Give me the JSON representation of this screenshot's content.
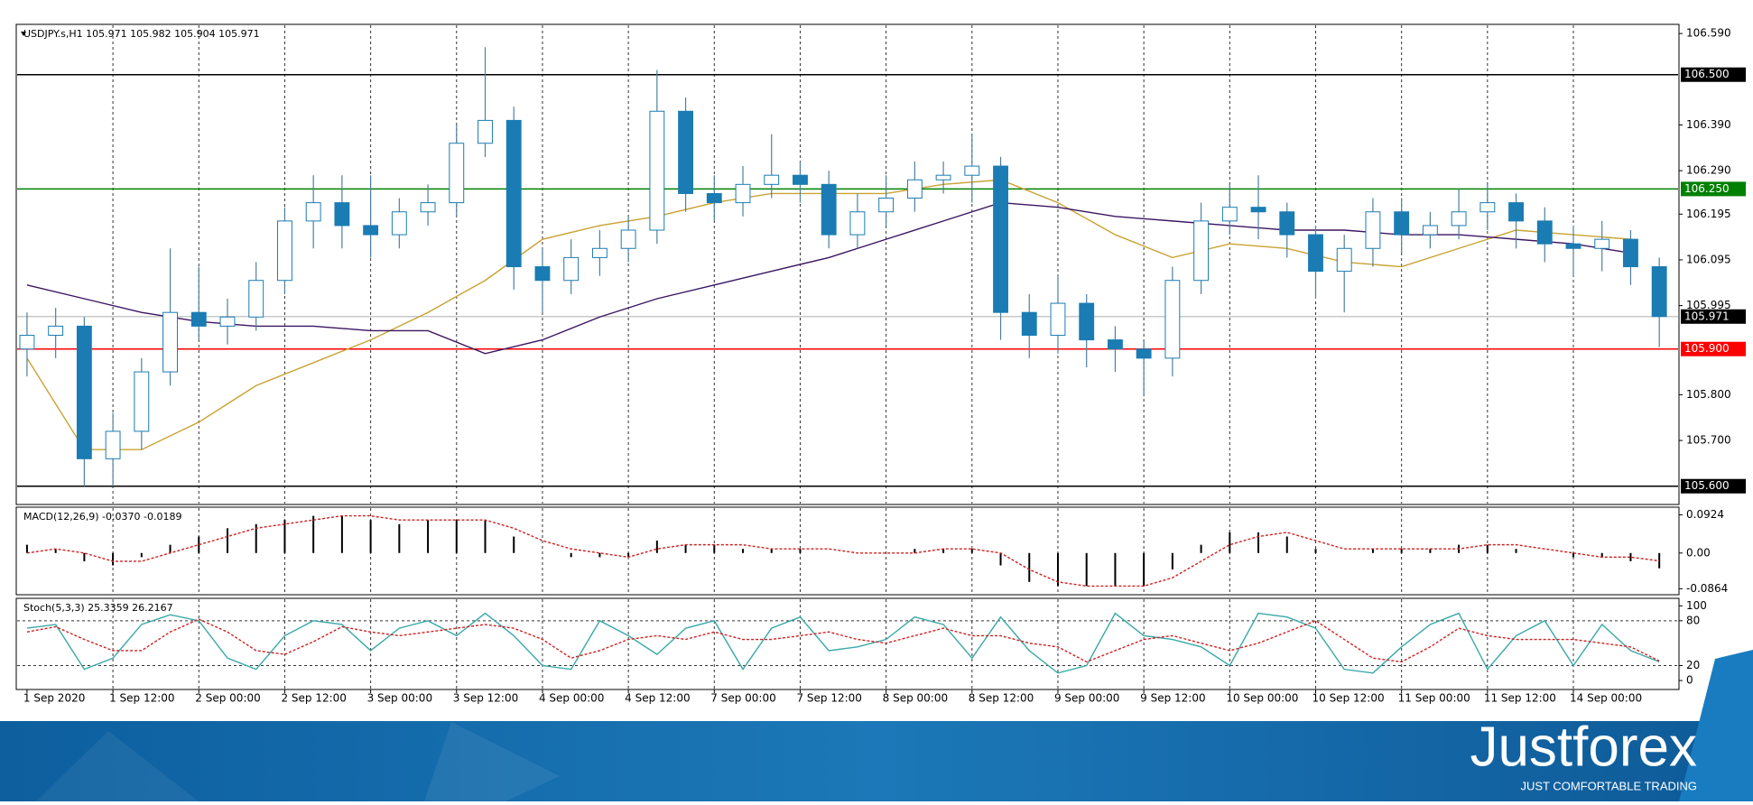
{
  "chart_data": [
    {
      "type": "candlestick",
      "title": "USDJPY.s,H1  105.971 105.982 105.904 105.971",
      "x": [
        0,
        4,
        8,
        12,
        16,
        20,
        24,
        28,
        32,
        36,
        40,
        44,
        48,
        52,
        56,
        60,
        64,
        68,
        72,
        76,
        80,
        84,
        88,
        92,
        96,
        100,
        104,
        108,
        112,
        116,
        120,
        124,
        128,
        132,
        136,
        140,
        144,
        148,
        152,
        156,
        160,
        164,
        168,
        172,
        176,
        180,
        184,
        188,
        192,
        196,
        200,
        204,
        208,
        212,
        216,
        220,
        224,
        228
      ],
      "open": [
        105.9,
        105.93,
        105.95,
        105.66,
        105.72,
        105.85,
        105.98,
        105.95,
        105.97,
        106.05,
        106.18,
        106.22,
        106.17,
        106.15,
        106.2,
        106.22,
        106.35,
        106.4,
        106.08,
        106.05,
        106.1,
        106.12,
        106.16,
        106.42,
        106.24,
        106.22,
        106.26,
        106.28,
        106.26,
        106.15,
        106.2,
        106.23,
        106.27,
        106.28,
        106.3,
        105.98,
        105.93,
        106.0,
        105.92,
        105.9,
        105.88,
        106.05,
        106.18,
        106.21,
        106.2,
        106.15,
        106.07,
        106.12,
        106.2,
        106.15,
        106.17,
        106.2,
        106.22,
        106.18,
        106.13,
        106.12,
        106.14,
        106.08
      ],
      "high": [
        105.98,
        105.99,
        105.97,
        105.76,
        105.88,
        106.12,
        106.08,
        106.01,
        106.09,
        106.21,
        106.28,
        106.28,
        106.28,
        106.23,
        106.26,
        106.39,
        106.56,
        106.43,
        106.12,
        106.14,
        106.16,
        106.19,
        106.51,
        106.45,
        106.28,
        106.3,
        106.37,
        106.31,
        106.29,
        106.24,
        106.28,
        106.31,
        106.31,
        106.37,
        106.32,
        106.02,
        106.06,
        106.02,
        105.95,
        105.92,
        106.08,
        106.22,
        106.26,
        106.28,
        106.22,
        106.17,
        106.15,
        106.23,
        106.23,
        106.2,
        106.25,
        106.26,
        106.24,
        106.21,
        106.17,
        106.18,
        106.16,
        106.1
      ],
      "low": [
        105.84,
        105.88,
        105.6,
        105.6,
        105.68,
        105.82,
        105.92,
        105.91,
        105.94,
        106.02,
        106.12,
        106.12,
        106.1,
        106.12,
        106.17,
        106.19,
        106.32,
        106.03,
        105.98,
        106.02,
        106.06,
        106.09,
        106.13,
        106.2,
        106.18,
        106.19,
        106.23,
        106.22,
        106.12,
        106.12,
        106.17,
        106.2,
        106.24,
        106.22,
        105.92,
        105.88,
        105.89,
        105.86,
        105.85,
        105.8,
        105.84,
        106.02,
        106.15,
        106.14,
        106.1,
        106.01,
        105.98,
        106.08,
        106.11,
        106.12,
        106.14,
        106.16,
        106.12,
        106.09,
        106.06,
        106.07,
        106.04,
        105.904
      ],
      "close": [
        105.93,
        105.95,
        105.66,
        105.72,
        105.85,
        105.98,
        105.95,
        105.97,
        106.05,
        106.18,
        106.22,
        106.17,
        106.15,
        106.2,
        106.22,
        106.35,
        106.4,
        106.08,
        106.05,
        106.1,
        106.12,
        106.16,
        106.42,
        106.24,
        106.22,
        106.26,
        106.28,
        106.26,
        106.15,
        106.2,
        106.23,
        106.27,
        106.28,
        106.3,
        105.98,
        105.93,
        106.0,
        105.92,
        105.9,
        105.88,
        106.05,
        106.18,
        106.21,
        106.2,
        106.15,
        106.07,
        106.12,
        106.2,
        106.15,
        106.17,
        106.2,
        106.22,
        106.18,
        106.13,
        106.12,
        106.14,
        106.08,
        105.971
      ],
      "up_color": "#ffffff",
      "down_color": "#1a7cb3",
      "wick_color": "#4f7f9f",
      "lines": [
        {
          "color": "#c9a233",
          "x": [
            0,
            8,
            16,
            24,
            32,
            40,
            48,
            56,
            64,
            72,
            80,
            88,
            96,
            104,
            112,
            120,
            128,
            136,
            144,
            152,
            160,
            168,
            176,
            184,
            192,
            200,
            208,
            216,
            224
          ],
          "values": [
            105.88,
            105.68,
            105.68,
            105.74,
            105.82,
            105.87,
            105.92,
            105.98,
            106.05,
            106.14,
            106.17,
            106.19,
            106.22,
            106.24,
            106.24,
            106.24,
            106.26,
            106.27,
            106.22,
            106.15,
            106.1,
            106.13,
            106.12,
            106.09,
            106.08,
            106.12,
            106.16,
            106.15,
            106.14
          ]
        },
        {
          "color": "#3b1560",
          "x": [
            0,
            8,
            16,
            24,
            32,
            40,
            48,
            56,
            64,
            72,
            80,
            88,
            96,
            104,
            112,
            120,
            128,
            136,
            144,
            152,
            160,
            168,
            176,
            184,
            192,
            200,
            208,
            216,
            224
          ],
          "values": [
            106.04,
            106.01,
            105.98,
            105.96,
            105.95,
            105.95,
            105.94,
            105.94,
            105.89,
            105.92,
            105.97,
            106.01,
            106.04,
            106.07,
            106.1,
            106.14,
            106.18,
            106.22,
            106.21,
            106.19,
            106.18,
            106.17,
            106.16,
            106.16,
            106.15,
            106.15,
            106.14,
            106.13,
            106.11
          ]
        }
      ],
      "levels": [
        {
          "value": 106.5,
          "label": "106.500",
          "line_color": "#000000",
          "box_color": "#000000"
        },
        {
          "value": 106.25,
          "label": "106.250",
          "line_color": "#008000",
          "box_color": "#008000"
        },
        {
          "value": 105.971,
          "label": "105.971",
          "line_color": "#c8c8c8",
          "box_color": "#000000"
        },
        {
          "value": 105.9,
          "label": "105.900",
          "line_color": "#ff0000",
          "box_color": "#ff0000"
        },
        {
          "value": 105.6,
          "label": "105.600",
          "line_color": "#000000",
          "box_color": "#000000"
        }
      ],
      "xlim": [
        -1,
        230.5
      ],
      "ylim": [
        105.56,
        106.61
      ],
      "yticks": [
        {
          "value": 106.59,
          "label": "106.590"
        },
        {
          "value": 106.39,
          "label": "106.390"
        },
        {
          "value": 106.29,
          "label": "106.290"
        },
        {
          "value": 106.195,
          "label": "106.195"
        },
        {
          "value": 106.095,
          "label": "106.095"
        },
        {
          "value": 105.995,
          "label": "105.995"
        },
        {
          "value": 105.8,
          "label": "105.800"
        },
        {
          "value": 105.7,
          "label": "105.700"
        }
      ],
      "xticks": [
        {
          "value": 0,
          "label": "1 Sep 2020"
        },
        {
          "value": 12,
          "label": "1 Sep 12:00"
        },
        {
          "value": 24,
          "label": "2 Sep 00:00"
        },
        {
          "value": 36,
          "label": "2 Sep 12:00"
        },
        {
          "value": 48,
          "label": "3 Sep 00:00"
        },
        {
          "value": 60,
          "label": "3 Sep 12:00"
        },
        {
          "value": 72,
          "label": "4 Sep 00:00"
        },
        {
          "value": 84,
          "label": "4 Sep 12:00"
        },
        {
          "value": 96,
          "label": "7 Sep 00:00"
        },
        {
          "value": 108,
          "label": "7 Sep 12:00"
        },
        {
          "value": 120,
          "label": "8 Sep 00:00"
        },
        {
          "value": 132,
          "label": "8 Sep 12:00"
        },
        {
          "value": 144,
          "label": "9 Sep 00:00"
        },
        {
          "value": 156,
          "label": "9 Sep 12:00"
        },
        {
          "value": 168,
          "label": "10 Sep 00:00"
        },
        {
          "value": 180,
          "label": "10 Sep 12:00"
        },
        {
          "value": 192,
          "label": "11 Sep 00:00"
        },
        {
          "value": 204,
          "label": "11 Sep 12:00"
        },
        {
          "value": 216,
          "label": "14 Sep 00:00"
        }
      ],
      "grid": true
    },
    {
      "type": "macd",
      "title": "MACD(12,26,9) -0.0370 -0.0189",
      "histogram": {
        "color": "#000000",
        "values": [
          0.02,
          0.01,
          -0.02,
          -0.03,
          -0.01,
          0.02,
          0.04,
          0.06,
          0.07,
          0.08,
          0.09,
          0.09,
          0.08,
          0.07,
          0.08,
          0.08,
          0.08,
          0.04,
          0,
          -0.01,
          -0.01,
          -0.01,
          0.03,
          0.02,
          0.02,
          0.01,
          0.01,
          0.01,
          0,
          0,
          0,
          0.01,
          0.01,
          0.01,
          -0.03,
          -0.07,
          -0.08,
          -0.08,
          -0.08,
          -0.08,
          -0.04,
          0.02,
          0.05,
          0.05,
          0.04,
          0.01,
          0,
          0.01,
          0.01,
          0.01,
          0.02,
          0.02,
          0.01,
          0,
          -0.01,
          -0.01,
          -0.02,
          -0.037
        ]
      },
      "signal": {
        "color": "#d02020",
        "values": [
          0,
          0.01,
          0,
          -0.02,
          -0.02,
          0,
          0.02,
          0.04,
          0.06,
          0.07,
          0.08,
          0.09,
          0.09,
          0.08,
          0.08,
          0.08,
          0.08,
          0.06,
          0.03,
          0.01,
          0,
          -0.01,
          0.01,
          0.02,
          0.02,
          0.02,
          0.01,
          0.01,
          0.01,
          0,
          0,
          0,
          0.01,
          0.01,
          0,
          -0.04,
          -0.07,
          -0.08,
          -0.08,
          -0.08,
          -0.06,
          -0.02,
          0.02,
          0.04,
          0.05,
          0.03,
          0.01,
          0.01,
          0.01,
          0.01,
          0.01,
          0.02,
          0.02,
          0.01,
          0,
          -0.01,
          -0.01,
          -0.019
        ]
      },
      "ylim": [
        -0.101,
        0.111
      ],
      "yticks": [
        0.0924,
        {
          "value": 0,
          "label": "0.00"
        },
        -0.0864
      ]
    },
    {
      "type": "stochastic",
      "title": "Stoch(5,3,3) 25.3359 26.2167",
      "main": {
        "color": "#3aa8a8",
        "values": [
          70,
          75,
          15,
          30,
          75,
          88,
          80,
          30,
          15,
          60,
          80,
          75,
          40,
          70,
          80,
          60,
          90,
          60,
          20,
          15,
          80,
          60,
          35,
          70,
          80,
          15,
          70,
          85,
          40,
          45,
          55,
          85,
          75,
          30,
          85,
          40,
          10,
          20,
          90,
          60,
          55,
          45,
          20,
          90,
          85,
          70,
          15,
          10,
          45,
          75,
          90,
          15,
          60,
          80,
          20,
          75,
          40,
          25
        ]
      },
      "signal": {
        "color": "#d02020",
        "values": [
          65,
          72,
          55,
          40,
          40,
          65,
          82,
          65,
          40,
          35,
          52,
          72,
          65,
          60,
          65,
          70,
          75,
          70,
          55,
          30,
          40,
          55,
          60,
          55,
          65,
          55,
          55,
          60,
          65,
          55,
          50,
          60,
          70,
          60,
          60,
          50,
          45,
          25,
          40,
          55,
          60,
          50,
          40,
          50,
          65,
          80,
          55,
          30,
          25,
          45,
          70,
          60,
          55,
          55,
          55,
          50,
          45,
          26.22
        ]
      },
      "ylim": [
        -12,
        110
      ],
      "yticks": [
        100,
        80,
        20,
        0
      ]
    }
  ],
  "brand": {
    "name": "Justforex",
    "tagline": "JUST COMFORTABLE TRADING"
  }
}
